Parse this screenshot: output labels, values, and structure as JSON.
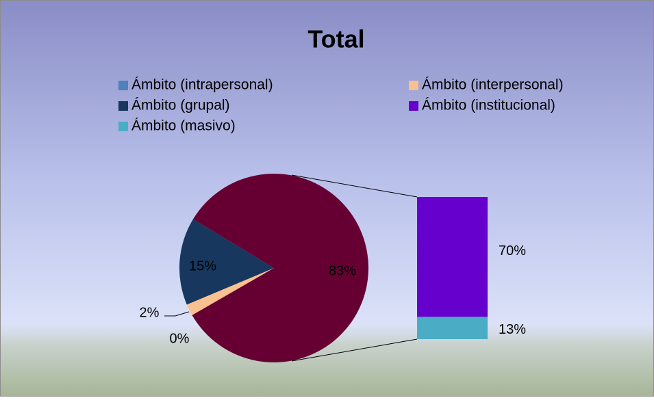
{
  "chart_data": {
    "type": "pie",
    "title": "Total",
    "categories": [
      "Ámbito (intrapersonal)",
      "Ámbito (interpersonal)",
      "Ámbito (grupal)",
      "Ámbito (institucional)",
      "Ámbito (masivo)"
    ],
    "values": [
      0,
      2,
      15,
      70,
      13
    ],
    "value_labels": [
      "0%",
      "2%",
      "15%",
      "70%",
      "13%"
    ],
    "colors": [
      "#4f81bd",
      "#fac08f",
      "#17375e",
      "#6600cc",
      "#4bacc6"
    ],
    "other_value": 83,
    "other_label": "83%",
    "other_color": "#660033"
  }
}
